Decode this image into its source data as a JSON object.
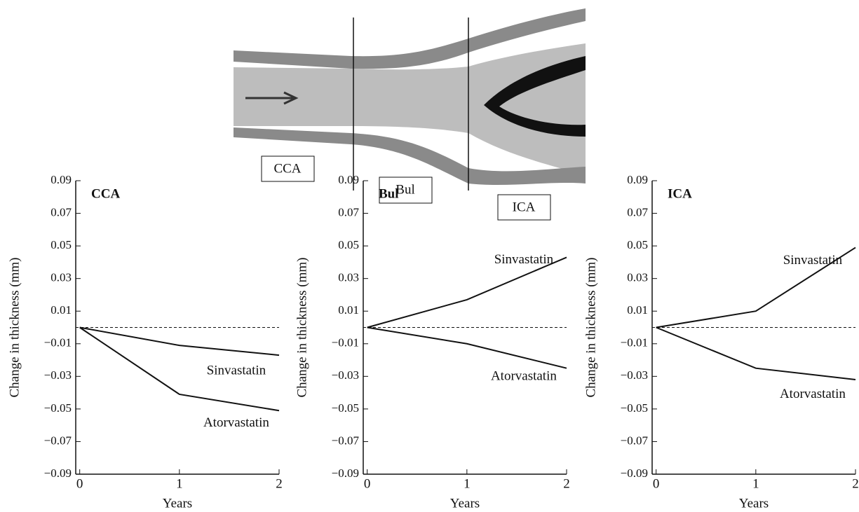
{
  "diagram": {
    "labels": [
      "CCA",
      "Bul",
      "ICA"
    ]
  },
  "chart_data": [
    {
      "type": "line",
      "title": "CCA",
      "ylabel": "Change in thickness (mm)",
      "xlabel": "Years",
      "x": [
        0,
        1,
        2
      ],
      "xlim": [
        -0.04,
        2.0
      ],
      "xticks": [
        0,
        1,
        2
      ],
      "ylim": [
        -0.09,
        0.09
      ],
      "yticks": [
        {
          "value": -0.09,
          "label": "−0.09"
        },
        {
          "value": -0.07,
          "label": "−0.07"
        },
        {
          "value": -0.05,
          "label": "−0.05"
        },
        {
          "value": -0.03,
          "label": "−0.03"
        },
        {
          "value": -0.01,
          "label": "−0.01"
        },
        0.01,
        0.03,
        0.05,
        0.07,
        0.09
      ],
      "reference_line": 0,
      "series": [
        {
          "name": "Sinvastatin",
          "color": "#111111",
          "values": [
            0,
            -0.011,
            -0.017
          ]
        },
        {
          "name": "Atorvastatin",
          "color": "#111111",
          "values": [
            0,
            -0.041,
            -0.051
          ]
        }
      ]
    },
    {
      "type": "line",
      "title": "Bul",
      "ylabel": "Change in thickness (mm)",
      "xlabel": "Years",
      "x": [
        0,
        1,
        2
      ],
      "xlim": [
        -0.04,
        2.0
      ],
      "xticks": [
        0,
        1,
        2
      ],
      "ylim": [
        -0.09,
        0.09
      ],
      "yticks": [
        {
          "value": -0.09,
          "label": "−0.09"
        },
        {
          "value": -0.07,
          "label": "−0.07"
        },
        {
          "value": -0.05,
          "label": "−0.05"
        },
        {
          "value": -0.03,
          "label": "−0.03"
        },
        {
          "value": -0.01,
          "label": "−0.01"
        },
        0.01,
        0.03,
        0.05,
        0.07,
        0.09
      ],
      "reference_line": 0,
      "series": [
        {
          "name": "Sinvastatin",
          "color": "#111111",
          "values": [
            0,
            0.017,
            0.043
          ]
        },
        {
          "name": "Atorvastatin",
          "color": "#111111",
          "values": [
            0,
            -0.01,
            -0.025
          ]
        }
      ]
    },
    {
      "type": "line",
      "title": "ICA",
      "ylabel": "Change in thickness (mm)",
      "xlabel": "Years",
      "x": [
        0,
        1,
        2
      ],
      "xlim": [
        -0.04,
        2.0
      ],
      "xticks": [
        0,
        1,
        2
      ],
      "ylim": [
        -0.09,
        0.09
      ],
      "yticks": [
        {
          "value": -0.09,
          "label": "−0.09"
        },
        {
          "value": -0.07,
          "label": "−0.07"
        },
        {
          "value": -0.05,
          "label": "−0.05"
        },
        {
          "value": -0.03,
          "label": "−0.03"
        },
        {
          "value": -0.01,
          "label": "−0.01"
        },
        0.01,
        0.03,
        0.05,
        0.07,
        0.09
      ],
      "reference_line": 0,
      "series": [
        {
          "name": "Sinvastatin",
          "color": "#111111",
          "values": [
            0,
            0.01,
            0.049
          ]
        },
        {
          "name": "Atorvastatin",
          "color": "#111111",
          "values": [
            0,
            -0.025,
            -0.032
          ]
        }
      ]
    }
  ]
}
